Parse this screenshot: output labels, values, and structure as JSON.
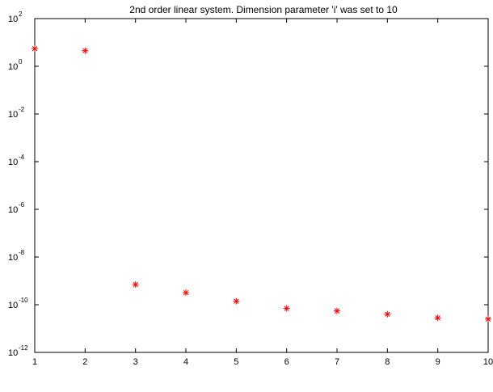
{
  "chart_data": {
    "type": "scatter",
    "title": "2nd order linear system. Dimension parameter 'i' was set to 10",
    "xlabel": "",
    "ylabel": "",
    "yscale": "log",
    "xlim": [
      1,
      10
    ],
    "ylim_exponents": [
      -12,
      2
    ],
    "x_ticks": [
      "1",
      "2",
      "3",
      "4",
      "5",
      "6",
      "7",
      "8",
      "9",
      "10"
    ],
    "y_ticks": [
      {
        "base": "10",
        "exp": "2"
      },
      {
        "base": "10",
        "exp": "0"
      },
      {
        "base": "10",
        "exp": "-2"
      },
      {
        "base": "10",
        "exp": "-4"
      },
      {
        "base": "10",
        "exp": "-6"
      },
      {
        "base": "10",
        "exp": "-8"
      },
      {
        "base": "10",
        "exp": "-10"
      },
      {
        "base": "10",
        "exp": "-12"
      }
    ],
    "grid": false,
    "marker": "asterisk",
    "marker_color": "#ff0000",
    "points": [
      {
        "x": 1,
        "y": 5.5
      },
      {
        "x": 2,
        "y": 4.5
      },
      {
        "x": 3,
        "y": 7e-10
      },
      {
        "x": 4,
        "y": 3.2e-10
      },
      {
        "x": 5,
        "y": 1.4e-10
      },
      {
        "x": 6,
        "y": 7e-11
      },
      {
        "x": 7,
        "y": 5.5e-11
      },
      {
        "x": 8,
        "y": 4e-11
      },
      {
        "x": 9,
        "y": 2.8e-11
      },
      {
        "x": 10,
        "y": 2.5e-11
      }
    ]
  }
}
